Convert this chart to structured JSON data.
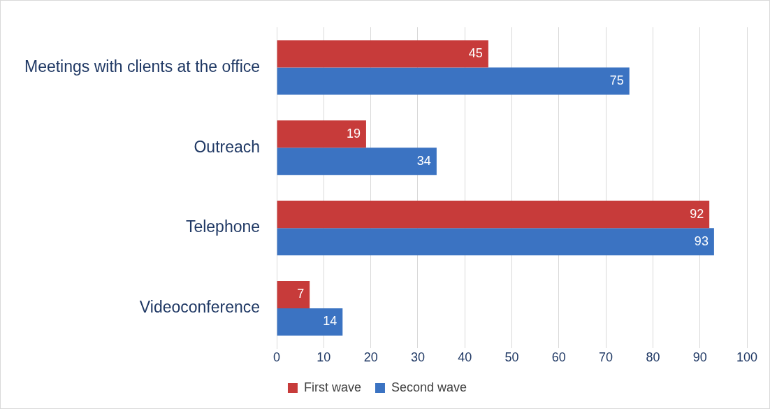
{
  "chart_data": {
    "type": "bar",
    "orientation": "horizontal",
    "categories": [
      "Meetings with clients at the office",
      "Outreach",
      "Telephone",
      "Videoconference"
    ],
    "series": [
      {
        "name": "First wave",
        "color": "#c73b3a",
        "values": [
          45,
          19,
          92,
          7
        ]
      },
      {
        "name": "Second wave",
        "color": "#3b73c2",
        "values": [
          75,
          34,
          93,
          14
        ]
      }
    ],
    "xlim": [
      0,
      100
    ],
    "xticks": [
      0,
      10,
      20,
      30,
      40,
      50,
      60,
      70,
      80,
      90,
      100
    ],
    "grid": "x",
    "legend": "bottom",
    "data_labels": true
  }
}
